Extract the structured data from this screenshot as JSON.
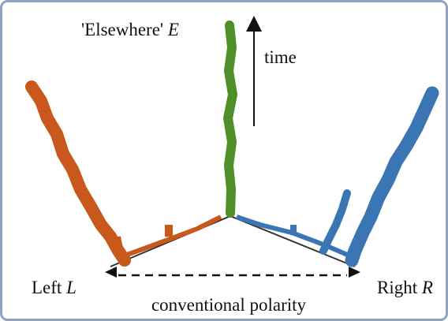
{
  "labels": {
    "elsewhere": {
      "text": "'Elsewhere'",
      "var": "E"
    },
    "time": "time",
    "left": {
      "text": "Left",
      "var": "L"
    },
    "right": {
      "text": "Right",
      "var": "R"
    },
    "axis": "conventional polarity"
  }
}
